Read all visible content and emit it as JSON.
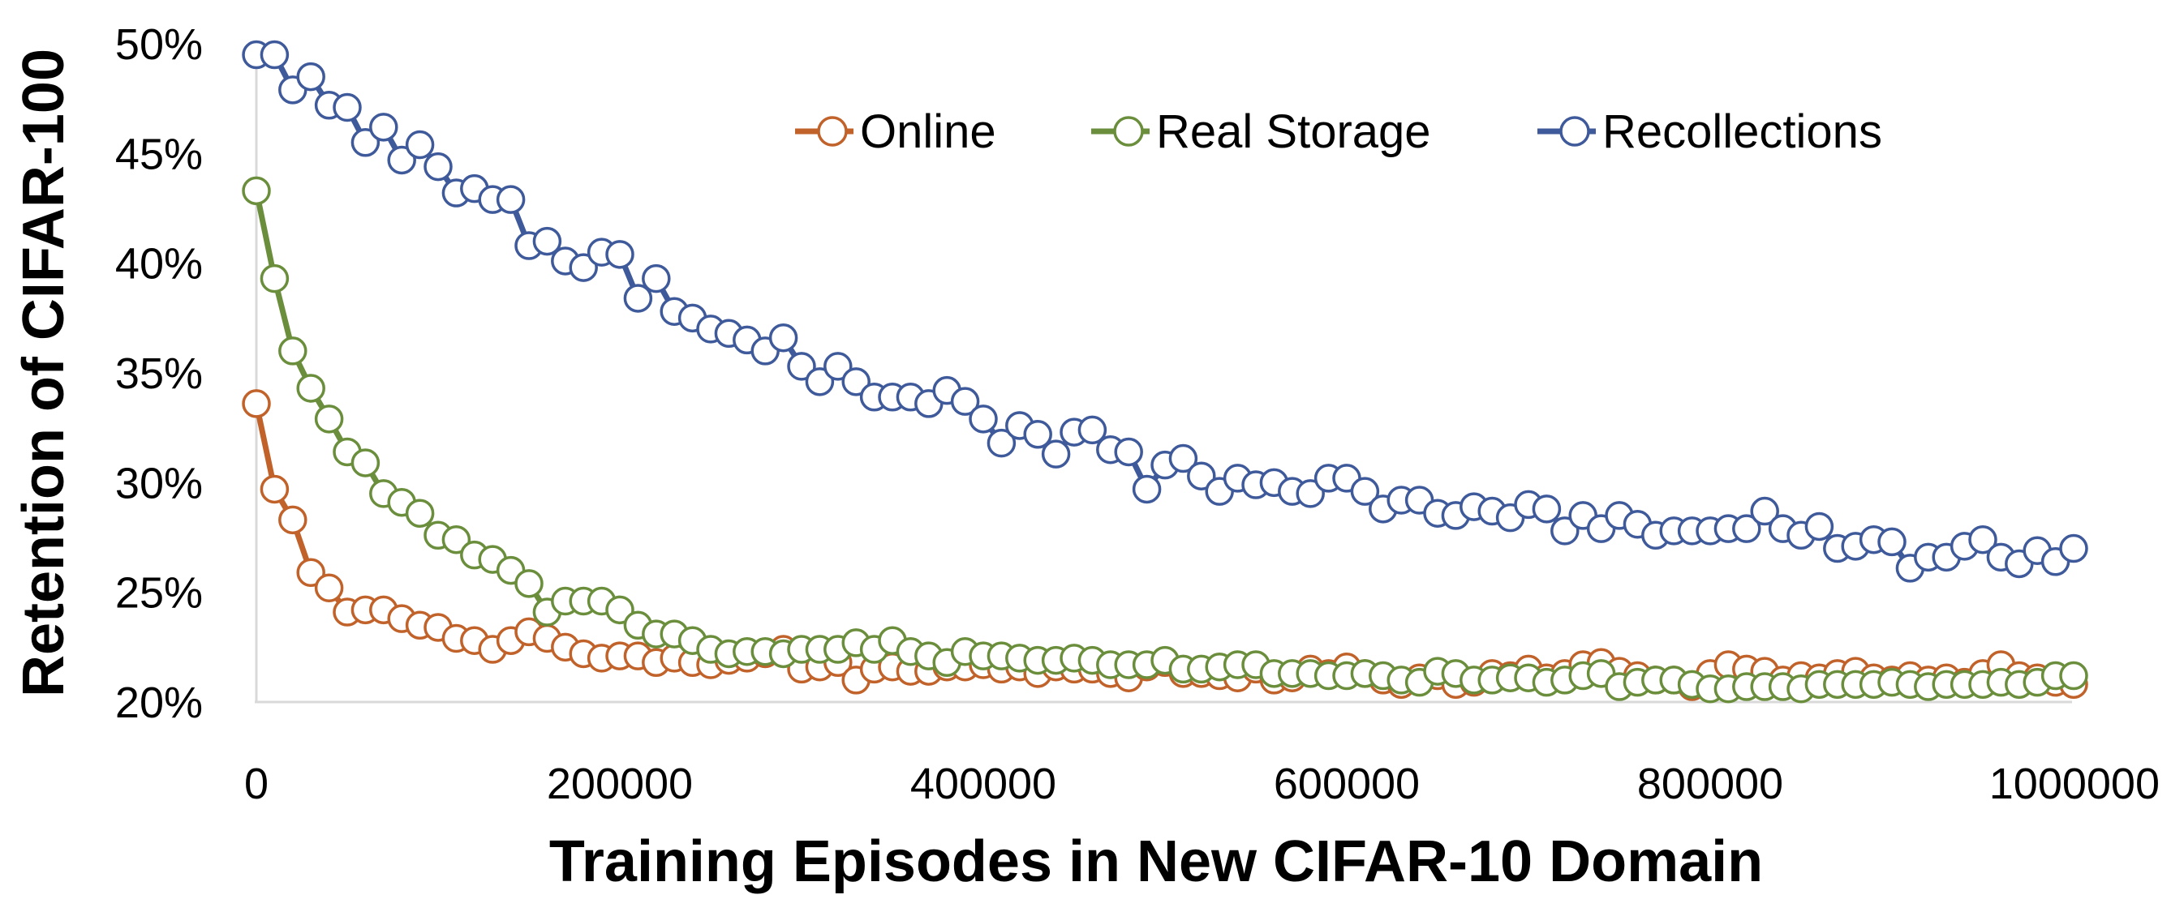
{
  "chart_data": {
    "type": "line",
    "title": "",
    "xlabel": "Training Episodes in New CIFAR-10 Domain",
    "ylabel": "Retention of CIFAR-100",
    "xlim": [
      0,
      1000000
    ],
    "ylim": [
      20,
      50
    ],
    "x_ticks": [
      "0",
      "200000",
      "400000",
      "600000",
      "800000",
      "1000000"
    ],
    "x_tick_values": [
      0,
      200000,
      400000,
      600000,
      800000,
      1000000
    ],
    "y_ticks": [
      "20%",
      "25%",
      "30%",
      "35%",
      "40%",
      "45%",
      "50%"
    ],
    "y_tick_values": [
      20,
      25,
      30,
      35,
      40,
      45,
      50
    ],
    "grid": false,
    "legend_position": "top-right",
    "markers": "hollow circle",
    "x": [
      0,
      10000,
      20000,
      30000,
      40000,
      50000,
      60000,
      70000,
      80000,
      90000,
      100000,
      110000,
      120000,
      130000,
      140000,
      150000,
      160000,
      170000,
      180000,
      190000,
      200000,
      210000,
      220000,
      230000,
      240000,
      250000,
      260000,
      270000,
      280000,
      290000,
      300000,
      310000,
      320000,
      330000,
      340000,
      350000,
      360000,
      370000,
      380000,
      390000,
      400000,
      410000,
      420000,
      430000,
      440000,
      450000,
      460000,
      470000,
      480000,
      490000,
      500000,
      510000,
      520000,
      530000,
      540000,
      550000,
      560000,
      570000,
      580000,
      590000,
      600000,
      610000,
      620000,
      630000,
      640000,
      650000,
      660000,
      670000,
      680000,
      690000,
      700000,
      710000,
      720000,
      730000,
      740000,
      750000,
      760000,
      770000,
      780000,
      790000,
      800000,
      810000,
      820000,
      830000,
      840000,
      850000,
      860000,
      870000,
      880000,
      890000,
      900000,
      910000,
      920000,
      930000,
      940000,
      950000,
      960000,
      970000,
      980000,
      990000,
      1000000
    ],
    "series": [
      {
        "name": "Online",
        "color": "#c0622a",
        "values": [
          33.6,
          29.7,
          28.3,
          25.9,
          25.2,
          24.1,
          24.2,
          24.2,
          23.8,
          23.5,
          23.4,
          22.9,
          22.8,
          22.4,
          22.8,
          23.2,
          22.9,
          22.5,
          22.2,
          22.0,
          22.1,
          22.1,
          21.8,
          22.0,
          21.8,
          21.7,
          21.9,
          22.0,
          22.2,
          22.4,
          21.5,
          21.6,
          21.8,
          21.0,
          21.5,
          21.6,
          21.4,
          21.4,
          21.6,
          21.6,
          21.7,
          21.5,
          21.6,
          21.3,
          21.6,
          21.5,
          21.5,
          21.3,
          21.1,
          21.6,
          21.8,
          21.3,
          21.3,
          21.2,
          21.1,
          21.5,
          21.0,
          21.1,
          21.5,
          21.3,
          21.6,
          21.3,
          21.0,
          20.8,
          21.1,
          21.2,
          20.8,
          20.9,
          21.3,
          21.2,
          21.5,
          21.1,
          21.3,
          21.7,
          21.8,
          21.4,
          21.2,
          21.0,
          21.0,
          20.7,
          21.3,
          21.7,
          21.5,
          21.4,
          21.0,
          21.2,
          21.1,
          21.3,
          21.4,
          21.1,
          21.0,
          21.2,
          21.0,
          21.1,
          20.9,
          21.3,
          21.7,
          21.2,
          21.1,
          20.9,
          20.8
        ]
      },
      {
        "name": "Real Storage",
        "color": "#6a8e3c",
        "values": [
          43.3,
          39.3,
          36.0,
          34.3,
          32.9,
          31.4,
          30.9,
          29.5,
          29.1,
          28.6,
          27.6,
          27.4,
          26.7,
          26.5,
          26.0,
          25.4,
          24.1,
          24.6,
          24.6,
          24.6,
          24.2,
          23.5,
          23.1,
          23.1,
          22.8,
          22.4,
          22.2,
          22.3,
          22.3,
          22.2,
          22.4,
          22.4,
          22.4,
          22.7,
          22.4,
          22.8,
          22.3,
          22.1,
          21.8,
          22.3,
          22.1,
          22.1,
          22.0,
          21.9,
          21.9,
          22.0,
          21.9,
          21.7,
          21.7,
          21.7,
          21.9,
          21.5,
          21.5,
          21.6,
          21.7,
          21.7,
          21.3,
          21.3,
          21.3,
          21.2,
          21.2,
          21.3,
          21.2,
          21.0,
          20.9,
          21.4,
          21.3,
          21.0,
          21.0,
          21.1,
          21.1,
          20.9,
          21.0,
          21.2,
          21.3,
          20.7,
          20.9,
          21.0,
          21.0,
          20.8,
          20.6,
          20.6,
          20.7,
          20.7,
          20.7,
          20.6,
          20.8,
          20.8,
          20.8,
          20.8,
          20.9,
          20.8,
          20.7,
          20.8,
          20.8,
          20.8,
          20.9,
          20.8,
          20.9,
          21.2,
          21.2
        ]
      },
      {
        "name": "Recollections",
        "color": "#3f5a9a",
        "values": [
          49.5,
          49.5,
          47.9,
          48.5,
          47.2,
          47.1,
          45.5,
          46.2,
          44.7,
          45.4,
          44.4,
          43.2,
          43.4,
          42.9,
          42.9,
          40.8,
          41.0,
          40.1,
          39.8,
          40.5,
          40.4,
          38.4,
          39.3,
          37.8,
          37.5,
          37.0,
          36.8,
          36.5,
          36.0,
          36.6,
          35.3,
          34.6,
          35.3,
          34.6,
          33.9,
          33.9,
          33.9,
          33.6,
          34.2,
          33.7,
          32.9,
          31.8,
          32.6,
          32.2,
          31.3,
          32.3,
          32.4,
          31.5,
          31.4,
          29.7,
          30.8,
          31.1,
          30.3,
          29.6,
          30.2,
          29.9,
          30.0,
          29.6,
          29.5,
          30.2,
          30.2,
          29.6,
          28.8,
          29.2,
          29.2,
          28.6,
          28.5,
          28.9,
          28.7,
          28.4,
          29.0,
          28.8,
          27.8,
          28.5,
          27.9,
          28.5,
          28.1,
          27.6,
          27.8,
          27.8,
          27.8,
          27.9,
          27.9,
          28.7,
          27.9,
          27.6,
          28.0,
          27.0,
          27.1,
          27.4,
          27.3,
          26.1,
          26.6,
          26.6,
          27.1,
          27.4,
          26.6,
          26.3,
          26.9,
          26.4,
          27.0
        ]
      }
    ]
  }
}
